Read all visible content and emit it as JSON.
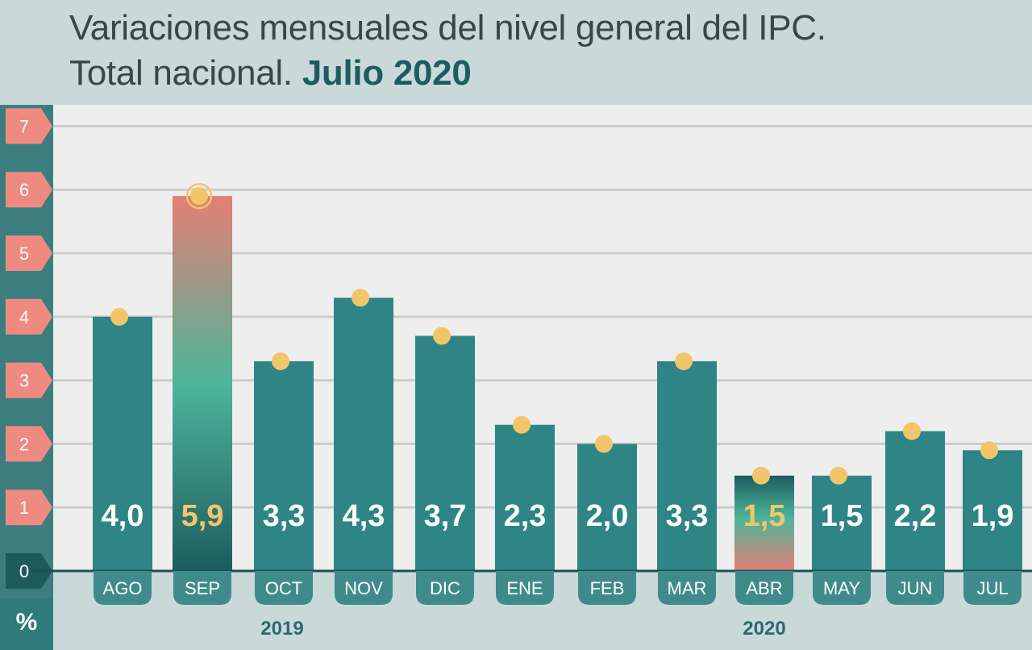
{
  "title": {
    "line1": "Variaciones mensuales del nivel general del IPC.",
    "line2_prefix": "Total nacional.",
    "line2_highlight": "Julio 2020"
  },
  "unit_label": "%",
  "colors": {
    "bar": "#2f8585",
    "marker": "#f3c56a",
    "tick_bubble": "#ef8a80",
    "zero_bubble": "#1d5a5e",
    "highlight_value": "#f3c56a",
    "value_text": "#ffffff"
  },
  "chart_data": {
    "type": "bar",
    "title": "Variaciones mensuales del nivel general del IPC. Total nacional. Julio 2020",
    "xlabel": "",
    "ylabel": "%",
    "ylim": [
      0,
      7
    ],
    "yticks": [
      0,
      1,
      2,
      3,
      4,
      5,
      6,
      7
    ],
    "grid": true,
    "categories": [
      "AGO",
      "SEP",
      "OCT",
      "NOV",
      "DIC",
      "ENE",
      "FEB",
      "MAR",
      "ABR",
      "MAY",
      "JUN",
      "JUL"
    ],
    "values": [
      4.0,
      5.9,
      3.3,
      4.3,
      3.7,
      2.3,
      2.0,
      3.3,
      1.5,
      1.5,
      2.2,
      1.9
    ],
    "value_labels": [
      "4,0",
      "5,9",
      "3,3",
      "4,3",
      "3,7",
      "2,3",
      "2,0",
      "3,3",
      "1,5",
      "1,5",
      "2,2",
      "1,9"
    ],
    "highlighted": [
      "SEP",
      "ABR"
    ],
    "years": [
      {
        "label": "2019",
        "categories": [
          "AGO",
          "SEP",
          "OCT",
          "NOV",
          "DIC"
        ]
      },
      {
        "label": "2020",
        "categories": [
          "ENE",
          "FEB",
          "MAR",
          "ABR",
          "MAY",
          "JUN",
          "JUL"
        ]
      }
    ]
  }
}
